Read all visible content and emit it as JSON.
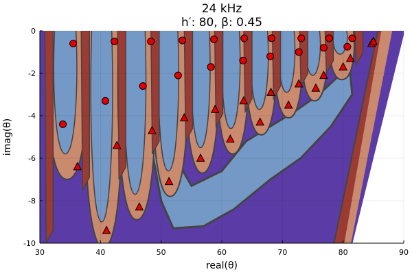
{
  "chart_data": {
    "type": "heatmap",
    "title": "24 kHz",
    "subtitle": "h′: 80, β: 0.45",
    "xlabel": "real(θ)",
    "ylabel": "imag(θ)",
    "xlim": [
      30,
      90
    ],
    "ylim": [
      -10,
      0
    ],
    "xticks": [
      "30",
      "40",
      "50",
      "60",
      "70",
      "80",
      "90"
    ],
    "yticks": [
      "0",
      "-2",
      "-4",
      "-6",
      "-8",
      "-10"
    ],
    "grid": true,
    "legend": "none",
    "colors": {
      "purple": "#5b3ca6",
      "dark_red": "#9b3b34",
      "salmon": "#c98a6e",
      "light_blue": "#7599c6",
      "boundary": "#444444",
      "marker": "#e00000"
    },
    "series": [
      {
        "marker": "circle",
        "x": [
          33.8,
          35.5,
          40.8,
          42.3,
          47.0,
          48.3,
          52.8,
          53.5,
          58.2,
          58.7,
          63.5,
          63.7,
          68.0,
          68.2,
          72.7,
          73.1,
          76.8,
          77.7,
          80.7,
          81.5
        ],
        "y": [
          -4.4,
          -0.6,
          -3.3,
          -0.5,
          -2.6,
          -0.5,
          -2.1,
          -0.45,
          -1.7,
          -0.4,
          -1.4,
          -0.35,
          -1.2,
          -0.35,
          -1.0,
          -0.35,
          -0.8,
          -0.35,
          -0.75,
          -0.35
        ]
      },
      {
        "marker": "triangle",
        "x": [
          36.2,
          41.0,
          42.7,
          46.4,
          48.5,
          51.3,
          53.8,
          56.5,
          58.9,
          61.4,
          63.6,
          66.3,
          68.1,
          71.0,
          72.7,
          75.5,
          76.8,
          80.0,
          81.2,
          84.7,
          85.0
        ],
        "y": [
          -6.4,
          -9.4,
          -5.4,
          -8.3,
          -4.7,
          -7.1,
          -4.1,
          -6.0,
          -3.7,
          -5.1,
          -3.3,
          -4.3,
          -2.9,
          -3.5,
          -2.5,
          -2.7,
          -2.1,
          -1.7,
          -1.3,
          -0.6,
          -0.5
        ]
      }
    ]
  }
}
